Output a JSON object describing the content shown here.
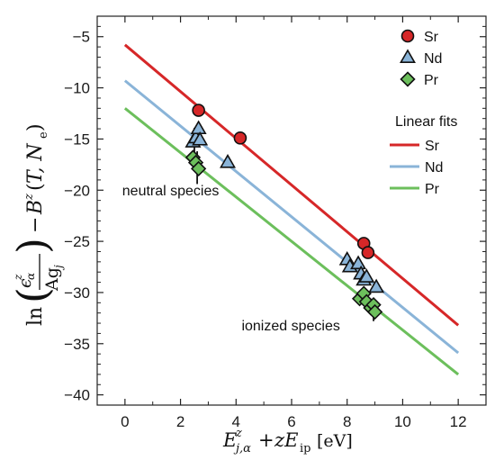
{
  "chart_data": {
    "type": "scatter",
    "xlabel": "E^z_{j,α} + zE_ip [eV]",
    "ylabel": "ln(ε^z_α / A g_j) − B^z(T, N_e)",
    "xlim": [
      -1,
      13
    ],
    "ylim": [
      -41,
      -3
    ],
    "x_ticks": [
      0,
      2,
      4,
      6,
      8,
      10,
      12
    ],
    "y_ticks": [
      -5,
      -10,
      -15,
      -20,
      -25,
      -30,
      -35,
      -40
    ],
    "grid": false,
    "series": [
      {
        "name": "Sr",
        "marker": "circle",
        "color": "#d62728",
        "points": [
          {
            "x": 2.65,
            "y": -12.2
          },
          {
            "x": 4.15,
            "y": -14.9
          },
          {
            "x": 8.6,
            "y": -25.2
          },
          {
            "x": 8.75,
            "y": -26.1
          }
        ]
      },
      {
        "name": "Nd",
        "marker": "triangle",
        "color": "#8ab4d8",
        "points": [
          {
            "x": 2.45,
            "y": -15.3
          },
          {
            "x": 2.55,
            "y": -14.9
          },
          {
            "x": 2.65,
            "y": -14.0
          },
          {
            "x": 2.7,
            "y": -15.1
          },
          {
            "x": 3.7,
            "y": -17.3
          },
          {
            "x": 8.0,
            "y": -26.8
          },
          {
            "x": 8.1,
            "y": -27.5
          },
          {
            "x": 8.4,
            "y": -27.2
          },
          {
            "x": 8.5,
            "y": -28.2
          },
          {
            "x": 8.6,
            "y": -28.8
          },
          {
            "x": 8.7,
            "y": -28.5
          },
          {
            "x": 9.05,
            "y": -29.5
          }
        ],
        "error_bars": [
          {
            "x": 2.5,
            "y_low": -16.4,
            "y_high": -13.9
          }
        ]
      },
      {
        "name": "Pr",
        "marker": "diamond",
        "color": "#6cbf5c",
        "points": [
          {
            "x": 2.45,
            "y": -16.8
          },
          {
            "x": 2.55,
            "y": -17.3
          },
          {
            "x": 2.65,
            "y": -17.9
          },
          {
            "x": 8.45,
            "y": -30.6
          },
          {
            "x": 8.6,
            "y": -30.1
          },
          {
            "x": 8.7,
            "y": -30.9
          },
          {
            "x": 8.85,
            "y": -31.5
          },
          {
            "x": 8.95,
            "y": -31.2
          },
          {
            "x": 9.0,
            "y": -31.9
          }
        ],
        "error_bars": [
          {
            "x": 2.6,
            "y_low": -19.4,
            "y_high": -16.2
          },
          {
            "x": 8.95,
            "y_low": -32.8,
            "y_high": -30.8
          }
        ]
      }
    ],
    "fits": [
      {
        "name": "Sr",
        "color": "#d62728",
        "x": [
          0,
          12
        ],
        "y": [
          -5.8,
          -33.2
        ]
      },
      {
        "name": "Nd",
        "color": "#8ab4d8",
        "x": [
          0,
          12
        ],
        "y": [
          -9.3,
          -35.9
        ]
      },
      {
        "name": "Pr",
        "color": "#6cbf5c",
        "x": [
          0,
          12
        ],
        "y": [
          -12.0,
          -38.0
        ]
      }
    ],
    "legend": {
      "placement": "top-right",
      "markers": [
        "Sr",
        "Nd",
        "Pr"
      ],
      "fits_title": "Linear fits",
      "fits": [
        "Sr",
        "Nd",
        "Pr"
      ]
    },
    "annotations": [
      {
        "text": "neutral species",
        "x": -0.1,
        "y": -20.5
      },
      {
        "text": "ionized species",
        "x": 4.2,
        "y": -33.7
      }
    ]
  }
}
